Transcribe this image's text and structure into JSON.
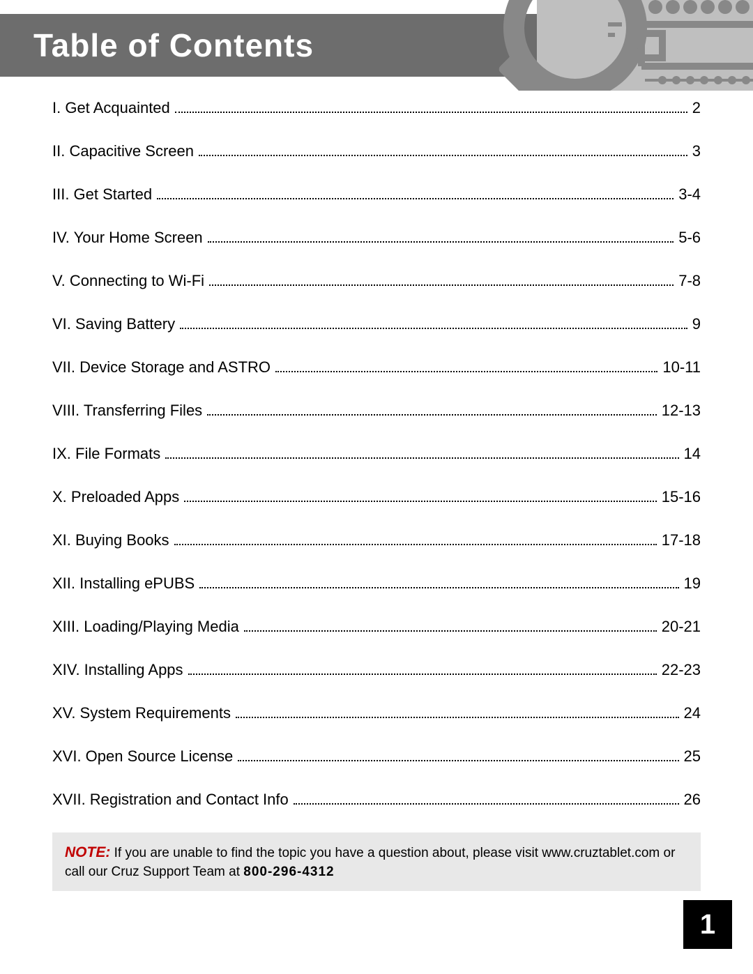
{
  "header": {
    "title": "Table of Contents"
  },
  "toc": [
    {
      "label": "I. Get Acquainted",
      "page": "2"
    },
    {
      "label": "II. Capacitive Screen",
      "page": "3"
    },
    {
      "label": "III. Get Started",
      "page": "3-4"
    },
    {
      "label": "IV. Your Home Screen",
      "page": "5-6"
    },
    {
      "label": "V. Connecting to Wi-Fi",
      "page": "7-8"
    },
    {
      "label": "VI. Saving Battery",
      "page": "9"
    },
    {
      "label": "VII. Device Storage and ASTRO",
      "page": "10-11"
    },
    {
      "label": "VIII. Transferring Files",
      "page": "12-13"
    },
    {
      "label": "IX. File Formats",
      "page": "14"
    },
    {
      "label": "X. Preloaded Apps",
      "page": "15-16"
    },
    {
      "label": "XI. Buying Books",
      "page": "17-18"
    },
    {
      "label": "XII. Installing ePUBS",
      "page": "19"
    },
    {
      "label": "XIII. Loading/Playing Media",
      "page": "20-21"
    },
    {
      "label": "XIV. Installing Apps",
      "page": "22-23"
    },
    {
      "label": "XV. System Requirements",
      "page": "24"
    },
    {
      "label": "XVI. Open Source License",
      "page": "25"
    },
    {
      "label": "XVII. Registration and Contact Info",
      "page": "26"
    }
  ],
  "note": {
    "label": "NOTE:",
    "text1": "If you are unable to find the topic you have a question about, please visit www.cruztablet.com or call our Cruz Support Team at ",
    "phone": "800-296-4312"
  },
  "page_number": "1",
  "styling": {
    "header_bg": "#6d6d6d",
    "header_text_color": "#ffffff",
    "note_bg": "#e8e8e8",
    "note_label_color": "#c00000",
    "page_num_bg": "#000000",
    "page_num_color": "#ffffff",
    "deco_fg": "#888888",
    "deco_bg": "#bfbfbf",
    "body_font_size": 22
  }
}
